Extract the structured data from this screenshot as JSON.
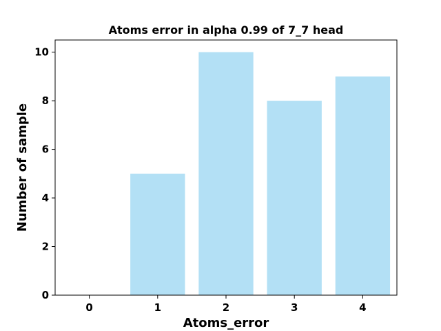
{
  "chart_data": {
    "type": "bar",
    "title": "Atoms error in alpha 0.99 of 7_7 head",
    "xlabel": "Atoms_error",
    "ylabel": "Number of sample",
    "categories": [
      "0",
      "1",
      "2",
      "3",
      "4"
    ],
    "values": [
      0,
      5,
      10,
      8,
      9
    ],
    "ylim": [
      0,
      10.5
    ],
    "xlim": [
      -0.5,
      4.5
    ],
    "yticks": [
      0,
      2,
      4,
      6,
      8,
      10
    ],
    "xticks": [
      0,
      1,
      2,
      3,
      4
    ],
    "bar_color": "#b3e0f5",
    "grid": false,
    "legend": "none"
  }
}
